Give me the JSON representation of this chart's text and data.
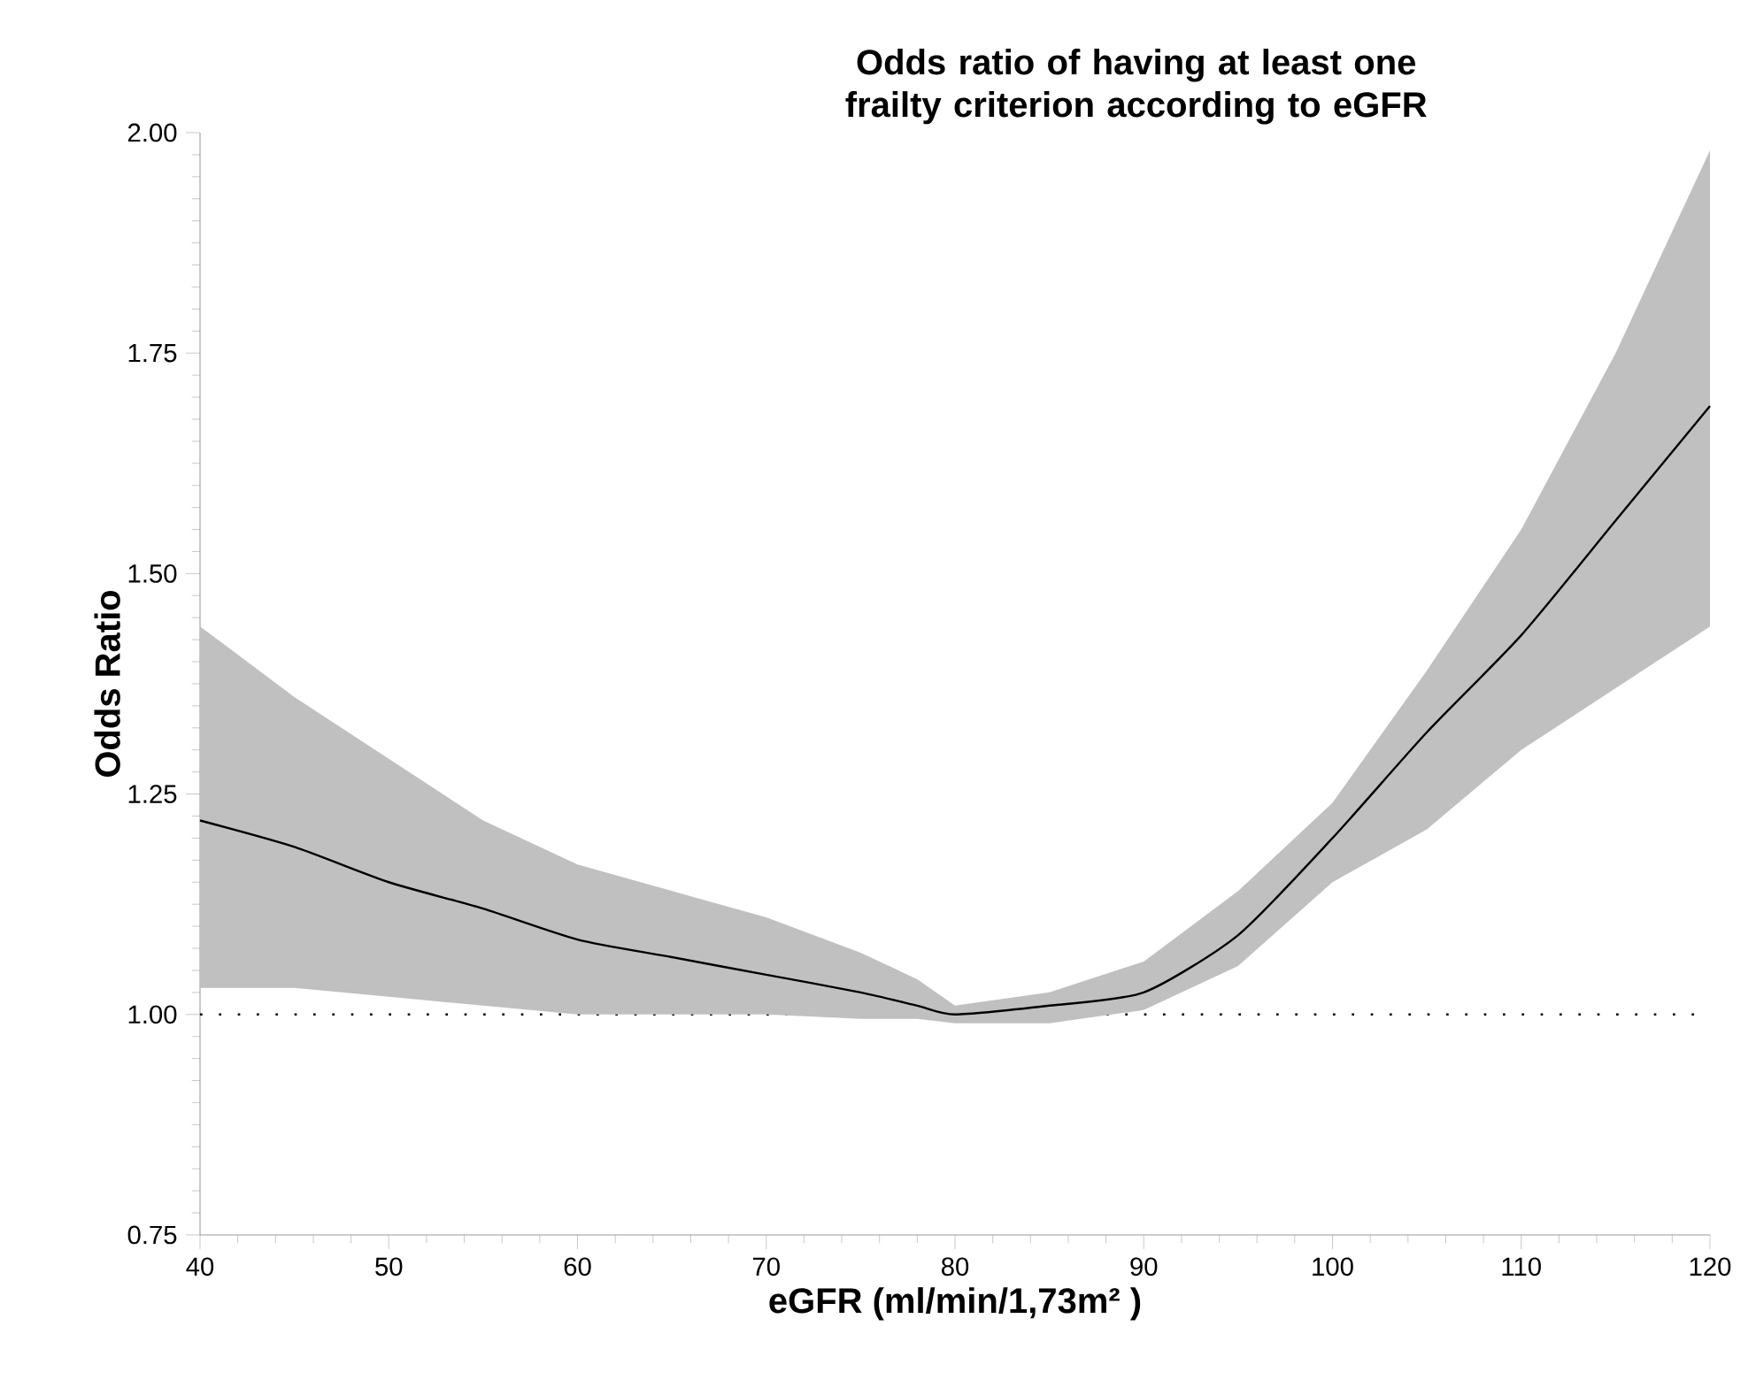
{
  "chart_data": {
    "type": "line",
    "title": "Odds ratio of having at least one frailty criterion according to eGFR",
    "xlabel": "eGFR (ml/min/1,73m² )",
    "ylabel": "Odds Ratio",
    "x": [
      40,
      45,
      50,
      55,
      60,
      65,
      70,
      75,
      78,
      80,
      85,
      90,
      95,
      100,
      105,
      110,
      115,
      120
    ],
    "series": [
      {
        "color": "#000000",
        "line_style": "solid",
        "values": [
          1.22,
          1.19,
          1.15,
          1.12,
          1.085,
          1.065,
          1.045,
          1.025,
          1.01,
          1.0,
          1.01,
          1.025,
          1.09,
          1.2,
          1.32,
          1.43,
          1.56,
          1.69
        ],
        "lower": [
          1.03,
          1.03,
          1.02,
          1.01,
          1.0,
          1.0,
          1.0,
          0.995,
          0.995,
          0.99,
          0.99,
          1.005,
          1.055,
          1.15,
          1.21,
          1.3,
          1.37,
          1.44
        ],
        "upper": [
          1.44,
          1.36,
          1.29,
          1.22,
          1.17,
          1.14,
          1.11,
          1.07,
          1.04,
          1.01,
          1.025,
          1.06,
          1.14,
          1.24,
          1.39,
          1.55,
          1.75,
          1.98
        ]
      }
    ],
    "ref_lines": [
      {
        "axis": "y",
        "value": 1.0,
        "color": "#000000",
        "line_style": "dotted"
      }
    ],
    "xlim": [
      40,
      120
    ],
    "ylim": [
      0.75,
      2.0
    ],
    "xticks": [
      40,
      50,
      60,
      70,
      80,
      90,
      100,
      110,
      120
    ],
    "yticks": [
      {
        "value": 0.75,
        "label": "0.75"
      },
      {
        "value": 1.0,
        "label": "1.00"
      },
      {
        "value": 1.25,
        "label": "1.25"
      },
      {
        "value": 1.5,
        "label": "1.50"
      },
      {
        "value": 1.75,
        "label": "1.75"
      },
      {
        "value": 2.0,
        "label": "2.00"
      }
    ]
  }
}
